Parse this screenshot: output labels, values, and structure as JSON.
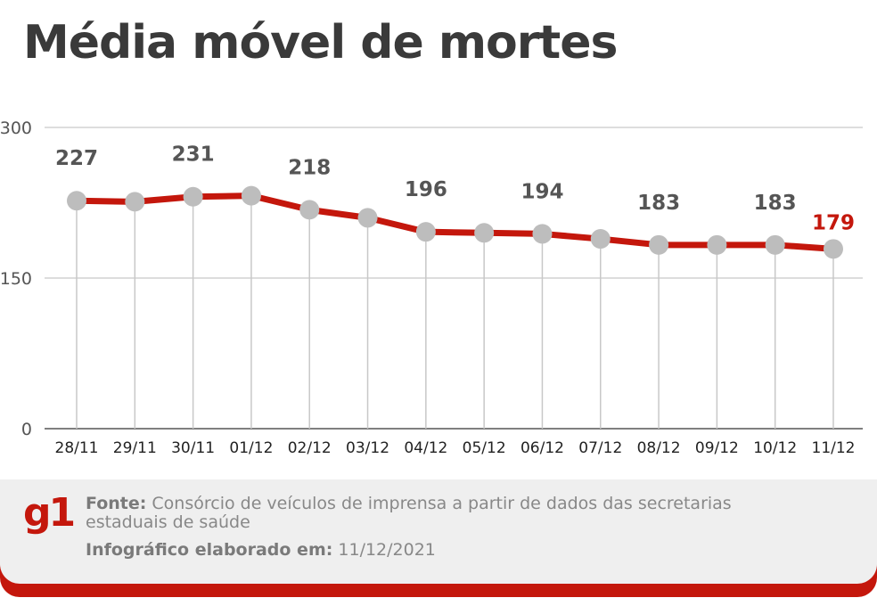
{
  "chart_data": {
    "type": "line",
    "title": "Média móvel de mortes",
    "categories": [
      "28/11",
      "29/11",
      "30/11",
      "01/12",
      "02/12",
      "03/12",
      "04/12",
      "05/12",
      "06/12",
      "07/12",
      "08/12",
      "09/12",
      "10/12",
      "11/12"
    ],
    "values": [
      227,
      226,
      231,
      232,
      218,
      210,
      196,
      195,
      194,
      189,
      183,
      183,
      183,
      179
    ],
    "data_labels": [
      "227",
      null,
      "231",
      null,
      "218",
      null,
      "196",
      null,
      "194",
      null,
      "183",
      null,
      "183",
      "179"
    ],
    "yticks": [
      "0",
      "150",
      "300"
    ],
    "ylim": [
      0,
      300
    ],
    "grid": true,
    "colors": {
      "line": "#c4170c",
      "marker": "#bdbdbd",
      "label": "#555555",
      "last_label": "#c4170c",
      "grid": "#bbbbbb"
    }
  },
  "footer": {
    "logo": "g1",
    "source_label": "Fonte:",
    "source_text": "Consórcio de veículos de imprensa a partir de dados das secretarias estaduais de saúde",
    "date_label": "Infográfico elaborado em:",
    "date_value": "11/12/2021"
  }
}
